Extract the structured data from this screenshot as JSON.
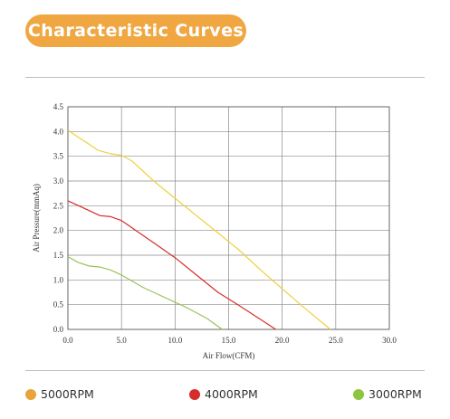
{
  "title": "Characteristic Curves",
  "legend": [
    {
      "label": "5000RPM",
      "color": "#e8a33a"
    },
    {
      "label": "4000RPM",
      "color": "#d62d2a"
    },
    {
      "label": "3000RPM",
      "color": "#8cc63f"
    }
  ],
  "chart_data": {
    "type": "line",
    "xlabel": "Air Flow(CFM)",
    "ylabel": "Air Pressure(mmAq)",
    "xlim": [
      0,
      30
    ],
    "ylim": [
      0,
      4.5
    ],
    "x_ticks": [
      "0.0",
      "5.0",
      "10.0",
      "15.0",
      "20.0",
      "25.0",
      "30.0"
    ],
    "y_ticks": [
      "0.0",
      "0.5",
      "1.0",
      "1.5",
      "2.0",
      "2.5",
      "3.0",
      "3.5",
      "4.0",
      "4.5"
    ],
    "grid": true,
    "series": [
      {
        "name": "5000RPM",
        "color": "#f1cf3c",
        "points": [
          [
            0,
            4.03
          ],
          [
            1,
            3.88
          ],
          [
            2,
            3.74
          ],
          [
            2.8,
            3.62
          ],
          [
            4,
            3.55
          ],
          [
            5,
            3.52
          ],
          [
            6,
            3.4
          ],
          [
            8,
            3.0
          ],
          [
            10,
            2.65
          ],
          [
            12,
            2.3
          ],
          [
            14,
            1.95
          ],
          [
            16,
            1.6
          ],
          [
            18,
            1.2
          ],
          [
            20,
            0.82
          ],
          [
            22,
            0.45
          ],
          [
            24.5,
            0.0
          ]
        ]
      },
      {
        "name": "4000RPM",
        "color": "#d62d2a",
        "points": [
          [
            0,
            2.6
          ],
          [
            1.5,
            2.45
          ],
          [
            3,
            2.3
          ],
          [
            4,
            2.28
          ],
          [
            5,
            2.2
          ],
          [
            6,
            2.05
          ],
          [
            8,
            1.75
          ],
          [
            10,
            1.45
          ],
          [
            12,
            1.1
          ],
          [
            14,
            0.75
          ],
          [
            16,
            0.48
          ],
          [
            18,
            0.2
          ],
          [
            19.4,
            0.0
          ]
        ]
      },
      {
        "name": "3000RPM",
        "color": "#9cc15a",
        "points": [
          [
            0,
            1.47
          ],
          [
            1,
            1.35
          ],
          [
            2,
            1.28
          ],
          [
            3,
            1.26
          ],
          [
            4,
            1.2
          ],
          [
            5,
            1.1
          ],
          [
            7,
            0.85
          ],
          [
            9,
            0.65
          ],
          [
            11,
            0.45
          ],
          [
            13,
            0.22
          ],
          [
            14.4,
            0.0
          ]
        ]
      }
    ]
  }
}
